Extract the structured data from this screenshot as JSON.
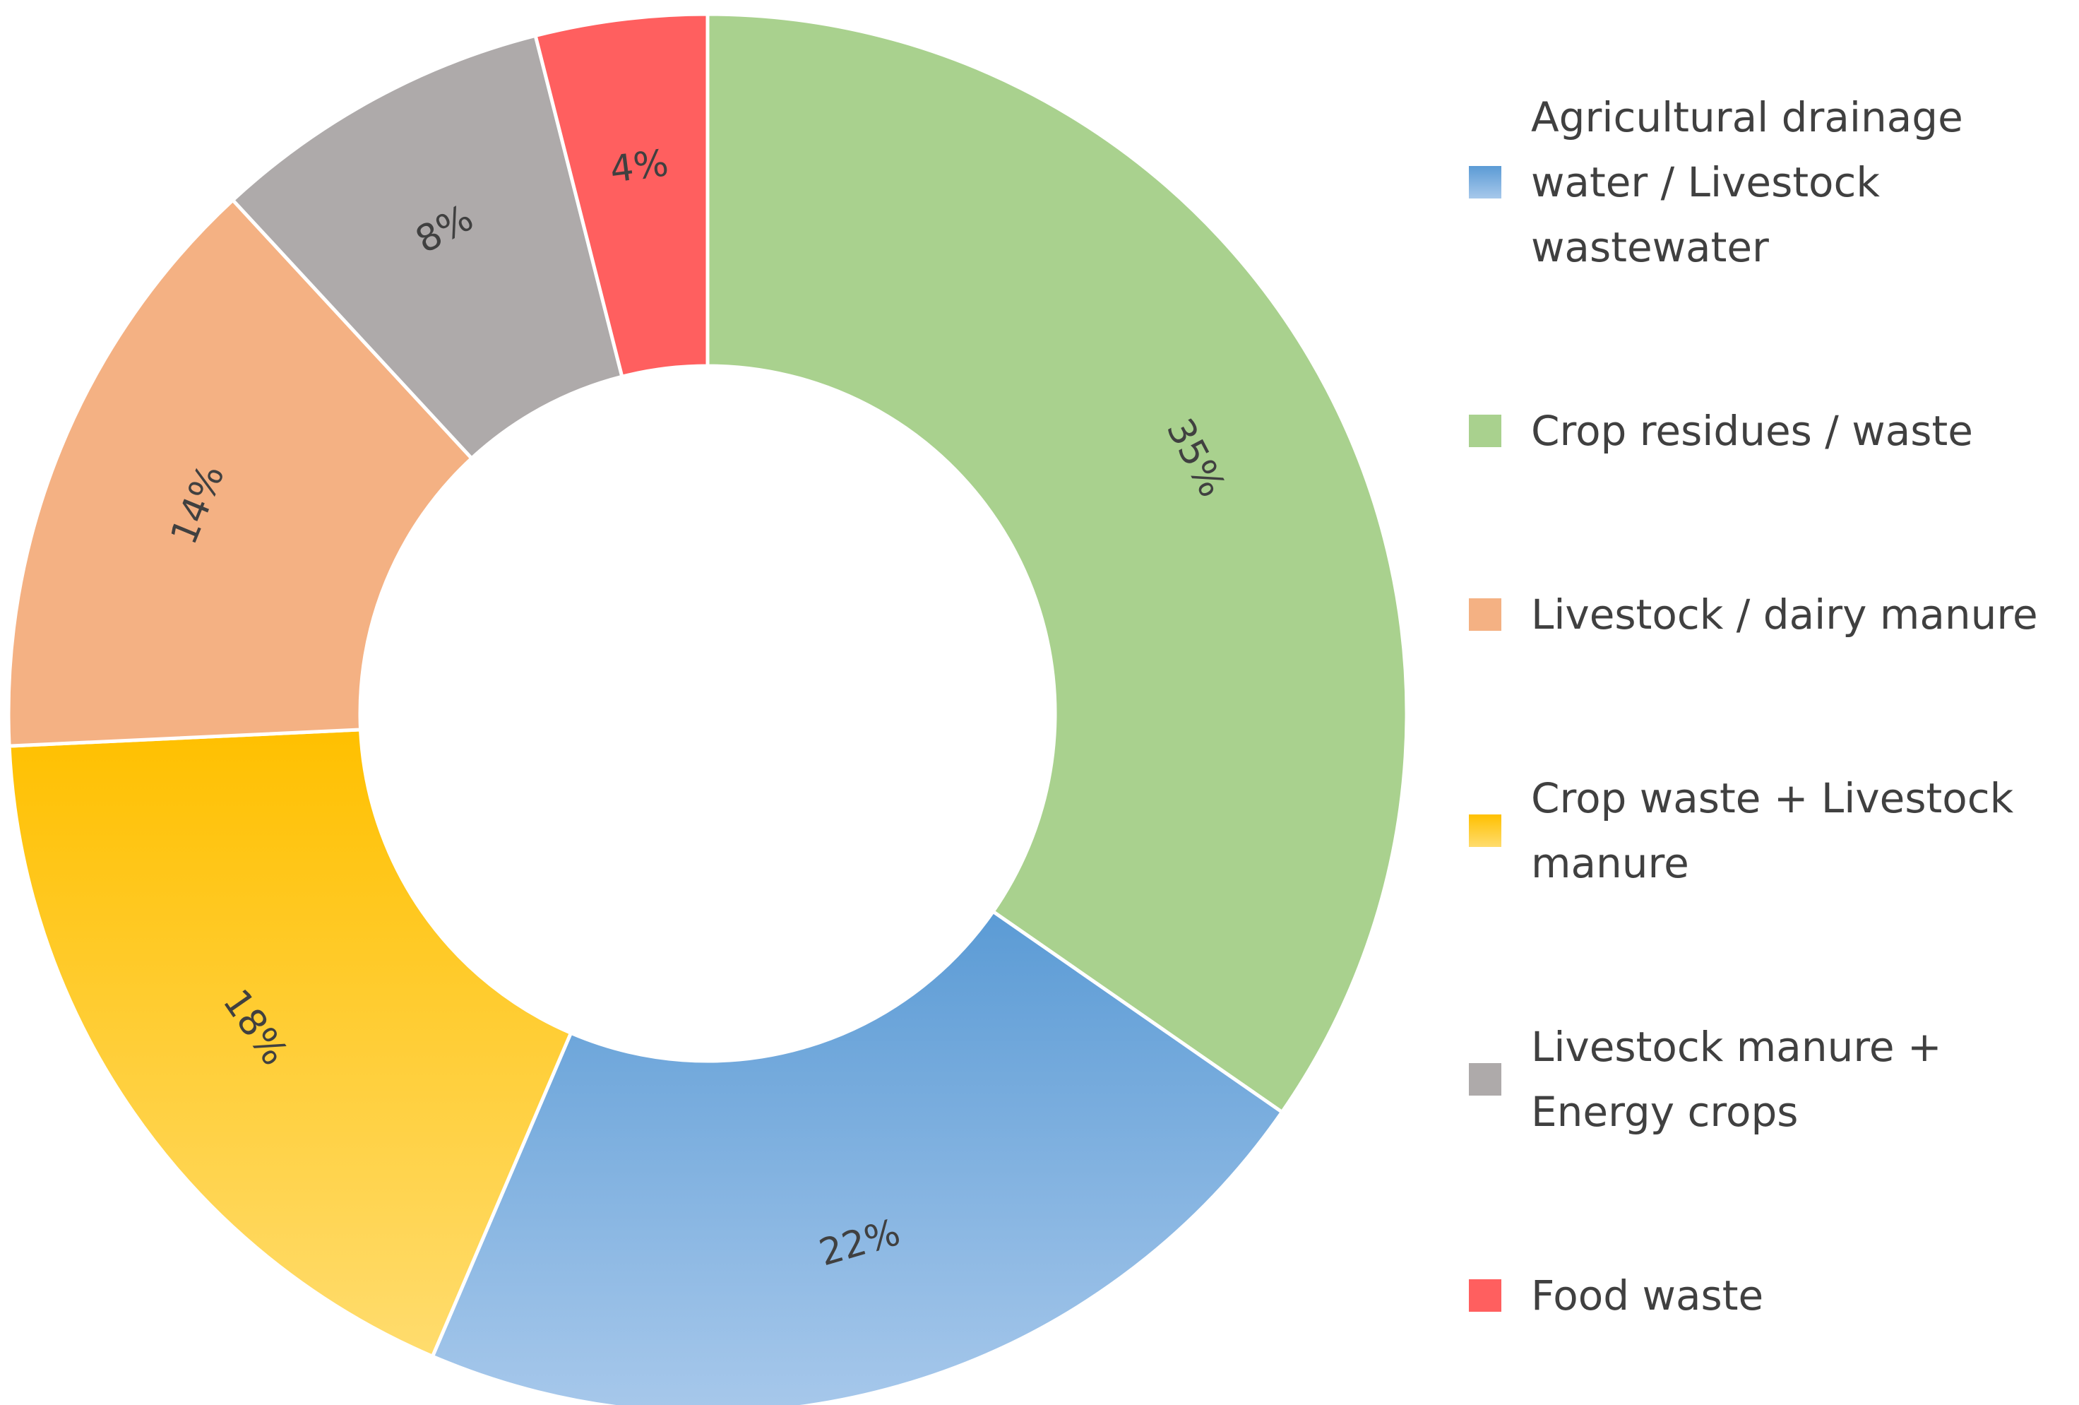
{
  "chart_data": {
    "type": "pie",
    "style": "donut",
    "title": "",
    "legend_position": "right",
    "start_angle_deg": 0,
    "direction": "clockwise",
    "slices": [
      {
        "category": "Crop residues / waste",
        "value": 35,
        "label": "35%",
        "color": "#a9d18e",
        "color_light": "#a9d18e"
      },
      {
        "category": "Agricultural drainage water / Livestock wastewater",
        "value": 22,
        "label": "22%",
        "color": "#5b9bd5",
        "color_light": "#a7c8eb"
      },
      {
        "category": "Crop waste + Livestock manure",
        "value": 18,
        "label": "18%",
        "color": "#ffc000",
        "color_light": "#ffdc6e"
      },
      {
        "category": "Livestock / dairy manure",
        "value": 14,
        "label": "14%",
        "color": "#f4b183",
        "color_light": "#f4b183"
      },
      {
        "category": "Livestock manure + Energy crops",
        "value": 8,
        "label": "8%",
        "color": "#aeaaaa",
        "color_light": "#aeaaaa"
      },
      {
        "category": "Food waste",
        "value": 4,
        "label": "4%",
        "color": "#ff5f5f",
        "color_light": "#ff5f5f"
      }
    ],
    "legend_order": [
      {
        "label": "Agricultural drainage water / Livestock wastewater",
        "color": "#5b9bd5",
        "color_light": "#a7c8eb"
      },
      {
        "label": "Crop residues / waste",
        "color": "#a9d18e",
        "color_light": "#a9d18e"
      },
      {
        "label": "Livestock / dairy manure",
        "color": "#f4b183",
        "color_light": "#f4b183"
      },
      {
        "label": "Crop waste + Livestock manure",
        "color": "#ffc000",
        "color_light": "#ffdc6e"
      },
      {
        "label": "Livestock manure + Energy crops",
        "color": "#aeaaaa",
        "color_light": "#aeaaaa"
      },
      {
        "label": "Food waste",
        "color": "#ff5f5f",
        "color_light": "#ff5f5f"
      }
    ]
  }
}
